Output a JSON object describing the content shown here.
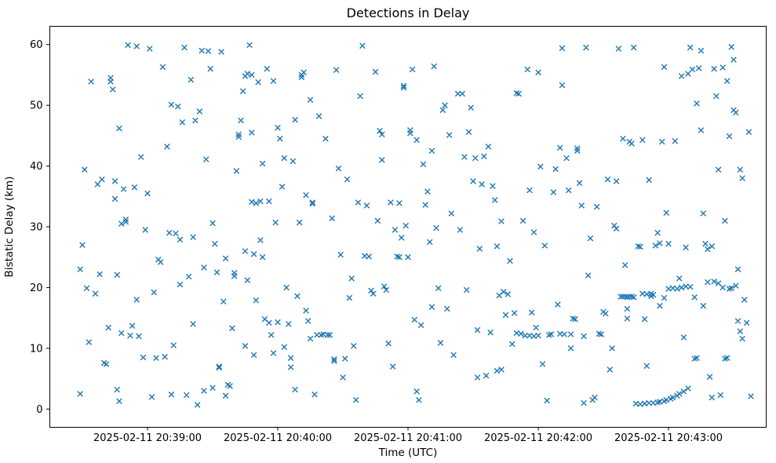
{
  "figure": {
    "title": "Detections in Delay",
    "xlabel": "Time (UTC)",
    "ylabel": "Bistatic Delay (km)"
  },
  "chart_data": {
    "type": "scatter",
    "title": "Detections in Delay",
    "xlabel": "Time (UTC)",
    "ylabel": "Bistatic Delay (km)",
    "marker": "x",
    "marker_color": "#1f77b4",
    "legend": "none",
    "grid": false,
    "x_units": "seconds relative to 2025-02-11 20:39:00 UTC",
    "x_tick_seconds": [
      0,
      60,
      120,
      180,
      240
    ],
    "x_tick_labels": [
      "2025-02-11 20:39:00",
      "2025-02-11 20:40:00",
      "2025-02-11 20:41:00",
      "2025-02-11 20:42:00",
      "2025-02-11 20:43:00"
    ],
    "xlim_seconds": [
      -45,
      285
    ],
    "y_ticks": [
      0,
      10,
      20,
      30,
      40,
      50,
      60
    ],
    "ylim": [
      -3,
      63
    ],
    "points": [
      [
        -31,
        2.5
      ],
      [
        -31,
        23.0
      ],
      [
        -30,
        27.0
      ],
      [
        -29,
        39.4
      ],
      [
        -28,
        19.9
      ],
      [
        -27,
        11.0
      ],
      [
        -26,
        53.9
      ],
      [
        -24,
        19.0
      ],
      [
        -23,
        37.0
      ],
      [
        -22,
        22.2
      ],
      [
        -21,
        37.8
      ],
      [
        -20,
        7.6
      ],
      [
        -19,
        7.4
      ],
      [
        -18,
        13.4
      ],
      [
        -17,
        53.9
      ],
      [
        -17,
        54.5
      ],
      [
        -16,
        52.6
      ],
      [
        -15,
        37.5
      ],
      [
        -15,
        34.6
      ],
      [
        -14,
        22.1
      ],
      [
        -14,
        3.2
      ],
      [
        -13,
        46.2
      ],
      [
        -13,
        1.3
      ],
      [
        -12,
        30.5
      ],
      [
        -12,
        12.5
      ],
      [
        -11,
        36.2
      ],
      [
        -10,
        31.2
      ],
      [
        -10,
        30.8
      ],
      [
        -9,
        59.9
      ],
      [
        -8,
        12.1
      ],
      [
        -7,
        13.7
      ],
      [
        -6,
        36.5
      ],
      [
        -5,
        59.7
      ],
      [
        -5,
        18.0
      ],
      [
        -4,
        12.0
      ],
      [
        -3,
        41.5
      ],
      [
        -2,
        8.5
      ],
      [
        -1,
        29.5
      ],
      [
        0,
        35.5
      ],
      [
        1,
        59.3
      ],
      [
        2,
        2.0
      ],
      [
        3,
        19.2
      ],
      [
        4,
        8.4
      ],
      [
        5,
        24.6
      ],
      [
        6,
        24.2
      ],
      [
        7,
        56.3
      ],
      [
        8,
        8.6
      ],
      [
        9,
        43.2
      ],
      [
        10,
        29.0
      ],
      [
        11,
        50.1
      ],
      [
        11,
        2.4
      ],
      [
        12,
        10.5
      ],
      [
        13,
        28.9
      ],
      [
        14,
        49.8
      ],
      [
        15,
        27.9
      ],
      [
        15,
        20.5
      ],
      [
        16,
        47.2
      ],
      [
        17,
        59.5
      ],
      [
        18,
        2.3
      ],
      [
        19,
        21.8
      ],
      [
        20,
        54.2
      ],
      [
        21,
        28.3
      ],
      [
        21,
        14.0
      ],
      [
        22,
        47.5
      ],
      [
        23,
        0.7
      ],
      [
        24,
        49.0
      ],
      [
        25,
        59.0
      ],
      [
        26,
        23.3
      ],
      [
        26,
        3.0
      ],
      [
        27,
        41.1
      ],
      [
        28,
        58.9
      ],
      [
        29,
        56.0
      ],
      [
        30,
        30.6
      ],
      [
        30,
        3.5
      ],
      [
        31,
        27.2
      ],
      [
        32,
        22.5
      ],
      [
        33,
        6.8
      ],
      [
        33,
        7.0
      ],
      [
        34,
        58.8
      ],
      [
        35,
        17.7
      ],
      [
        36,
        24.8
      ],
      [
        36,
        2.2
      ],
      [
        37,
        4.0
      ],
      [
        38,
        3.8
      ],
      [
        39,
        13.3
      ],
      [
        40,
        22.4
      ],
      [
        40,
        21.9
      ],
      [
        41,
        39.2
      ],
      [
        42,
        45.2
      ],
      [
        42,
        44.8
      ],
      [
        43,
        47.5
      ],
      [
        44,
        52.3
      ],
      [
        45,
        26.0
      ],
      [
        45,
        10.4
      ],
      [
        46,
        21.2
      ],
      [
        47,
        59.9
      ],
      [
        48,
        45.5
      ],
      [
        49,
        25.5
      ],
      [
        49,
        8.9
      ],
      [
        50,
        17.9
      ],
      [
        51,
        53.8
      ],
      [
        52,
        27.8
      ],
      [
        53,
        40.4
      ],
      [
        53,
        25.0
      ],
      [
        54,
        14.8
      ],
      [
        55,
        56.0
      ],
      [
        56,
        34.2
      ],
      [
        56,
        14.2
      ],
      [
        57,
        12.2
      ],
      [
        45,
        54.8
      ],
      [
        46,
        55.2
      ],
      [
        48,
        55.0
      ],
      [
        48,
        34.1
      ],
      [
        50,
        33.9
      ],
      [
        52,
        34.2
      ],
      [
        58,
        54.0
      ],
      [
        58,
        9.2
      ],
      [
        59,
        30.7
      ],
      [
        60,
        46.3
      ],
      [
        60,
        14.3
      ],
      [
        61,
        44.5
      ],
      [
        62,
        36.6
      ],
      [
        63,
        41.3
      ],
      [
        63,
        10.2
      ],
      [
        64,
        20.0
      ],
      [
        65,
        14.0
      ],
      [
        66,
        8.4
      ],
      [
        66,
        6.9
      ],
      [
        67,
        40.8
      ],
      [
        68,
        47.6
      ],
      [
        68,
        3.2
      ],
      [
        69,
        18.6
      ],
      [
        70,
        30.7
      ],
      [
        71,
        55.0
      ],
      [
        71,
        54.6
      ],
      [
        72,
        55.4
      ],
      [
        73,
        35.2
      ],
      [
        73,
        16.2
      ],
      [
        74,
        14.5
      ],
      [
        75,
        50.9
      ],
      [
        75,
        11.6
      ],
      [
        76,
        34.0
      ],
      [
        76,
        33.8
      ],
      [
        77,
        2.4
      ],
      [
        79,
        48.2
      ],
      [
        82,
        44.5
      ],
      [
        85,
        31.4
      ],
      [
        86,
        8.2
      ],
      [
        86,
        7.9
      ],
      [
        78,
        12.2
      ],
      [
        80,
        12.2
      ],
      [
        81,
        12.3
      ],
      [
        83,
        12.2
      ],
      [
        84,
        12.2
      ],
      [
        87,
        55.8
      ],
      [
        88,
        39.6
      ],
      [
        89,
        25.4
      ],
      [
        90,
        5.2
      ],
      [
        91,
        8.3
      ],
      [
        92,
        37.8
      ],
      [
        93,
        18.3
      ],
      [
        94,
        21.5
      ],
      [
        95,
        10.4
      ],
      [
        96,
        1.5
      ],
      [
        97,
        34.0
      ],
      [
        98,
        51.5
      ],
      [
        99,
        59.8
      ],
      [
        100,
        25.2
      ],
      [
        102,
        25.1
      ],
      [
        101,
        33.5
      ],
      [
        103,
        19.5
      ],
      [
        104,
        19.0
      ],
      [
        105,
        55.5
      ],
      [
        106,
        31.0
      ],
      [
        107,
        45.8
      ],
      [
        108,
        45.2
      ],
      [
        108,
        41.0
      ],
      [
        109,
        20.2
      ],
      [
        110,
        19.6
      ],
      [
        111,
        10.8
      ],
      [
        112,
        34.0
      ],
      [
        113,
        7.0
      ],
      [
        114,
        29.5
      ],
      [
        115,
        25.1
      ],
      [
        116,
        25.0
      ],
      [
        116,
        33.9
      ],
      [
        117,
        28.2
      ],
      [
        118,
        52.9
      ],
      [
        118,
        53.2
      ],
      [
        119,
        30.2
      ],
      [
        120,
        25.0
      ],
      [
        121,
        45.9
      ],
      [
        121,
        45.4
      ],
      [
        122,
        55.9
      ],
      [
        123,
        14.7
      ],
      [
        124,
        44.3
      ],
      [
        124,
        2.9
      ],
      [
        125,
        1.5
      ],
      [
        126,
        13.8
      ],
      [
        127,
        40.3
      ],
      [
        128,
        33.6
      ],
      [
        129,
        35.8
      ],
      [
        130,
        27.5
      ],
      [
        131,
        42.5
      ],
      [
        131,
        16.8
      ],
      [
        132,
        56.4
      ],
      [
        133,
        29.8
      ],
      [
        134,
        19.9
      ],
      [
        135,
        10.9
      ],
      [
        136,
        49.2
      ],
      [
        137,
        50.0
      ],
      [
        138,
        16.5
      ],
      [
        139,
        45.1
      ],
      [
        140,
        32.2
      ],
      [
        141,
        8.9
      ],
      [
        143,
        51.9
      ],
      [
        145,
        51.9
      ],
      [
        144,
        29.5
      ],
      [
        146,
        41.5
      ],
      [
        147,
        19.6
      ],
      [
        148,
        45.6
      ],
      [
        149,
        49.6
      ],
      [
        150,
        37.5
      ],
      [
        151,
        41.3
      ],
      [
        152,
        13.0
      ],
      [
        152,
        5.2
      ],
      [
        153,
        26.4
      ],
      [
        154,
        37.0
      ],
      [
        155,
        41.6
      ],
      [
        156,
        5.5
      ],
      [
        157,
        43.2
      ],
      [
        158,
        12.6
      ],
      [
        159,
        36.7
      ],
      [
        160,
        34.4
      ],
      [
        161,
        26.8
      ],
      [
        161,
        6.3
      ],
      [
        162,
        18.7
      ],
      [
        163,
        30.9
      ],
      [
        163,
        6.5
      ],
      [
        164,
        19.3
      ],
      [
        165,
        15.5
      ],
      [
        166,
        18.9
      ],
      [
        167,
        24.4
      ],
      [
        168,
        10.7
      ],
      [
        169,
        15.8
      ],
      [
        170,
        52.0
      ],
      [
        171,
        51.9
      ],
      [
        173,
        31.0
      ],
      [
        175,
        55.9
      ],
      [
        176,
        36.0
      ],
      [
        177,
        15.9
      ],
      [
        170,
        12.5
      ],
      [
        172,
        12.4
      ],
      [
        174,
        12.1
      ],
      [
        176,
        12.1
      ],
      [
        178,
        12.0
      ],
      [
        180,
        12.1
      ],
      [
        185,
        12.2
      ],
      [
        186,
        12.3
      ],
      [
        190,
        12.4
      ],
      [
        192,
        12.3
      ],
      [
        178,
        29.1
      ],
      [
        179,
        13.4
      ],
      [
        180,
        55.4
      ],
      [
        181,
        39.9
      ],
      [
        182,
        7.4
      ],
      [
        183,
        26.9
      ],
      [
        184,
        1.4
      ],
      [
        187,
        35.7
      ],
      [
        188,
        39.5
      ],
      [
        189,
        17.2
      ],
      [
        190,
        43.0
      ],
      [
        191,
        53.3
      ],
      [
        191,
        59.4
      ],
      [
        193,
        41.3
      ],
      [
        194,
        36.0
      ],
      [
        195,
        12.3
      ],
      [
        195,
        10.0
      ],
      [
        196,
        14.9
      ],
      [
        197,
        14.8
      ],
      [
        198,
        42.5
      ],
      [
        198,
        42.9
      ],
      [
        199,
        37.2
      ],
      [
        200,
        33.5
      ],
      [
        201,
        12.0
      ],
      [
        201,
        1.0
      ],
      [
        202,
        59.5
      ],
      [
        203,
        22.0
      ],
      [
        204,
        28.1
      ],
      [
        205,
        1.5
      ],
      [
        206,
        1.9
      ],
      [
        207,
        33.3
      ],
      [
        208,
        12.4
      ],
      [
        209,
        12.3
      ],
      [
        210,
        16.0
      ],
      [
        211,
        15.7
      ],
      [
        212,
        37.8
      ],
      [
        213,
        6.5
      ],
      [
        214,
        10.0
      ],
      [
        215,
        30.2
      ],
      [
        216,
        37.5
      ],
      [
        216,
        29.7
      ],
      [
        217,
        59.3
      ],
      [
        219,
        44.5
      ],
      [
        220,
        23.7
      ],
      [
        221,
        16.5
      ],
      [
        221,
        14.9
      ],
      [
        222,
        44.0
      ],
      [
        223,
        43.7
      ],
      [
        224,
        59.5
      ],
      [
        226,
        26.8
      ],
      [
        227,
        26.7
      ],
      [
        228,
        44.3
      ],
      [
        229,
        14.8
      ],
      [
        230,
        7.1
      ],
      [
        231,
        37.7
      ],
      [
        232,
        18.6
      ],
      [
        234,
        26.9
      ],
      [
        235,
        29.0
      ],
      [
        236,
        27.3
      ],
      [
        237,
        44.0
      ],
      [
        218,
        18.5
      ],
      [
        219,
        18.5
      ],
      [
        220,
        18.5
      ],
      [
        221,
        18.4
      ],
      [
        222,
        18.5
      ],
      [
        223,
        18.5
      ],
      [
        224,
        18.4
      ],
      [
        228,
        19.0
      ],
      [
        230,
        18.9
      ],
      [
        232,
        19.0
      ],
      [
        233,
        18.8
      ],
      [
        236,
        17.0
      ],
      [
        238,
        18.3
      ],
      [
        225,
        0.9
      ],
      [
        227,
        0.8
      ],
      [
        229,
        0.9
      ],
      [
        231,
        1.0
      ],
      [
        233,
        1.0
      ],
      [
        235,
        1.1
      ],
      [
        236,
        1.2
      ],
      [
        238,
        1.3
      ],
      [
        239,
        1.5
      ],
      [
        241,
        1.7
      ],
      [
        242,
        1.9
      ],
      [
        244,
        2.2
      ],
      [
        245,
        2.5
      ],
      [
        247,
        2.9
      ],
      [
        249,
        3.4
      ],
      [
        252,
        8.3
      ],
      [
        253,
        8.4
      ],
      [
        238,
        56.3
      ],
      [
        239,
        32.3
      ],
      [
        240,
        27.2
      ],
      [
        243,
        44.1
      ],
      [
        245,
        21.5
      ],
      [
        246,
        54.8
      ],
      [
        247,
        11.8
      ],
      [
        248,
        26.6
      ],
      [
        249,
        55.2
      ],
      [
        250,
        59.5
      ],
      [
        251,
        55.9
      ],
      [
        252,
        18.4
      ],
      [
        240,
        19.8
      ],
      [
        242,
        19.9
      ],
      [
        244,
        19.8
      ],
      [
        246,
        20.0
      ],
      [
        248,
        20.2
      ],
      [
        250,
        20.1
      ],
      [
        253,
        50.3
      ],
      [
        254,
        56.1
      ],
      [
        255,
        59.0
      ],
      [
        255,
        45.9
      ],
      [
        256,
        32.2
      ],
      [
        256,
        17.0
      ],
      [
        257,
        27.2
      ],
      [
        258,
        26.3
      ],
      [
        258,
        20.9
      ],
      [
        259,
        5.3
      ],
      [
        260,
        1.9
      ],
      [
        260,
        26.8
      ],
      [
        261,
        56.0
      ],
      [
        261,
        21.0
      ],
      [
        262,
        51.5
      ],
      [
        263,
        39.4
      ],
      [
        263,
        20.7
      ],
      [
        264,
        2.3
      ],
      [
        265,
        56.2
      ],
      [
        265,
        20.0
      ],
      [
        266,
        31.0
      ],
      [
        266,
        8.3
      ],
      [
        267,
        8.4
      ],
      [
        267,
        54.0
      ],
      [
        268,
        19.8
      ],
      [
        268,
        44.9
      ],
      [
        269,
        59.6
      ],
      [
        269,
        19.9
      ],
      [
        270,
        49.2
      ],
      [
        270,
        57.5
      ],
      [
        271,
        20.3
      ],
      [
        271,
        48.8
      ],
      [
        272,
        23.0
      ],
      [
        272,
        14.5
      ],
      [
        273,
        12.8
      ],
      [
        273,
        39.4
      ],
      [
        274,
        11.6
      ],
      [
        274,
        38.0
      ],
      [
        275,
        18.0
      ],
      [
        276,
        14.2
      ],
      [
        277,
        45.6
      ],
      [
        278,
        2.1
      ]
    ]
  }
}
